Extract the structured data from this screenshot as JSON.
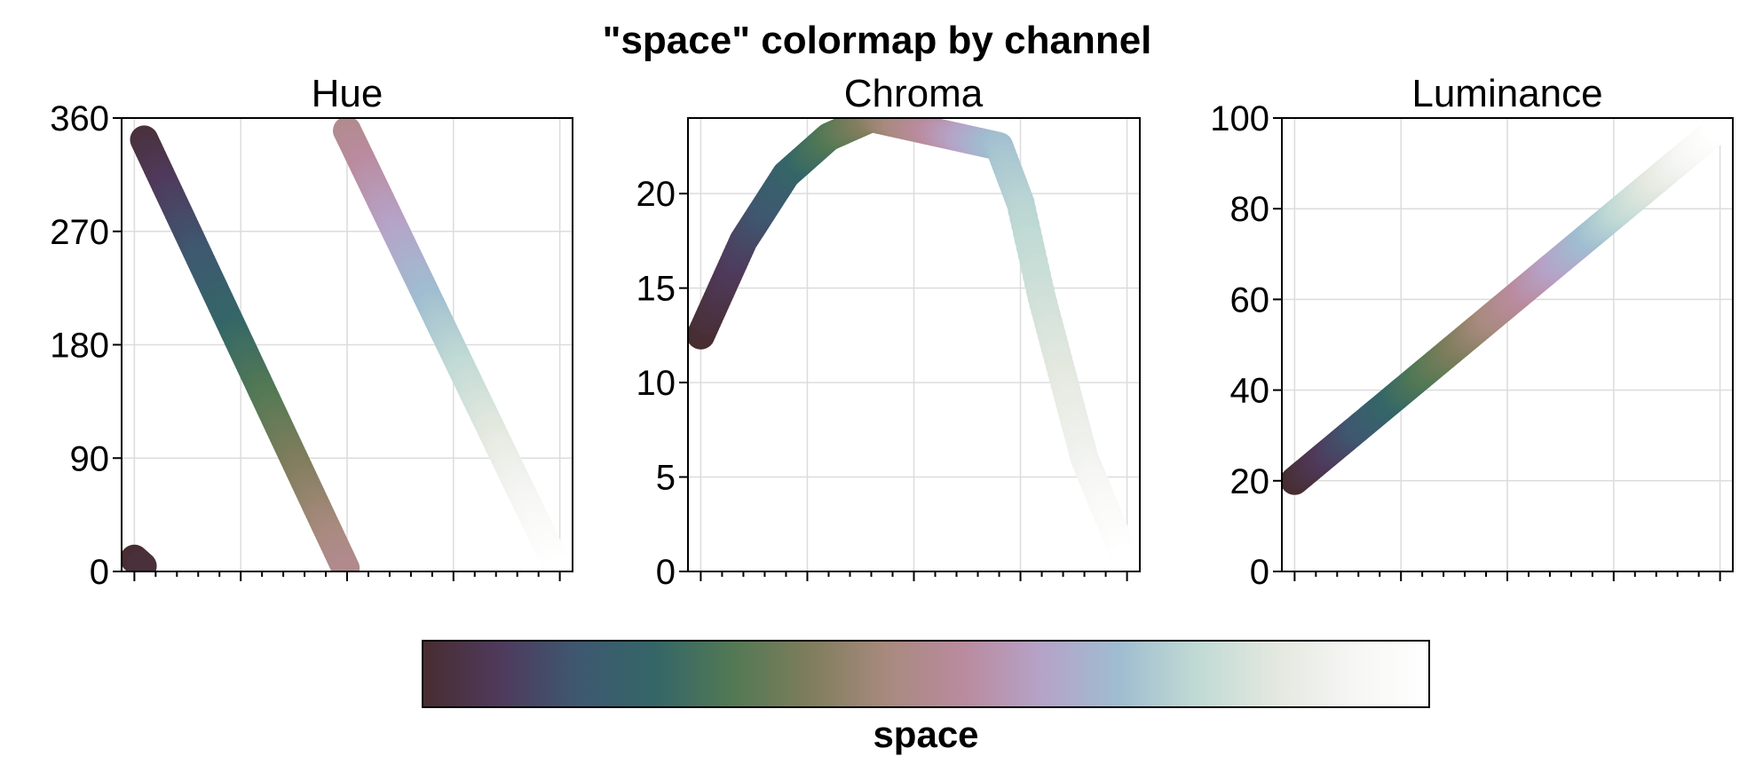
{
  "figure_title": "\"space\" colormap by channel",
  "colormap": {
    "label": "space",
    "colors": [
      "#472d30",
      "#4f3a5c",
      "#3e5870",
      "#346668",
      "#527954",
      "#7f7d5c",
      "#a88a7e",
      "#ba8b9f",
      "#b5a3c8",
      "#9fbdd0",
      "#c0dad4",
      "#e3e8df",
      "#f6f6f4",
      "#ffffff"
    ]
  },
  "chart_data": [
    {
      "type": "scatter",
      "title": "Hue",
      "ylim": [
        0,
        360
      ],
      "yticks": [
        0,
        90,
        180,
        270,
        360
      ],
      "xlim": [
        -0.03,
        1.03
      ],
      "grid": true,
      "channel": "hue",
      "x": [
        0,
        0.01,
        0.02,
        0.5,
        0.6,
        0.7,
        0.8,
        0.9,
        1.0
      ],
      "y": [
        10,
        355,
        330,
        0,
        350,
        250,
        160,
        70,
        0
      ]
    },
    {
      "type": "scatter",
      "title": "Chroma",
      "ylim": [
        0,
        24
      ],
      "yticks": [
        0,
        5,
        10,
        15,
        20
      ],
      "xlim": [
        -0.03,
        1.03
      ],
      "grid": true,
      "channel": "chroma",
      "x": [
        0,
        0.1,
        0.2,
        0.3,
        0.4,
        0.5,
        0.6,
        0.7,
        0.75,
        0.8,
        0.9,
        1.0
      ],
      "y": [
        12.5,
        17.5,
        21.0,
        23.0,
        24.0,
        23.5,
        23.0,
        22.5,
        19.5,
        14.5,
        6.0,
        0.5
      ]
    },
    {
      "type": "scatter",
      "title": "Luminance",
      "ylim": [
        0,
        100
      ],
      "yticks": [
        0,
        20,
        40,
        60,
        80,
        100
      ],
      "xlim": [
        -0.03,
        1.03
      ],
      "grid": true,
      "channel": "luminance",
      "x": [
        0,
        1
      ],
      "y": [
        20,
        98
      ]
    }
  ]
}
